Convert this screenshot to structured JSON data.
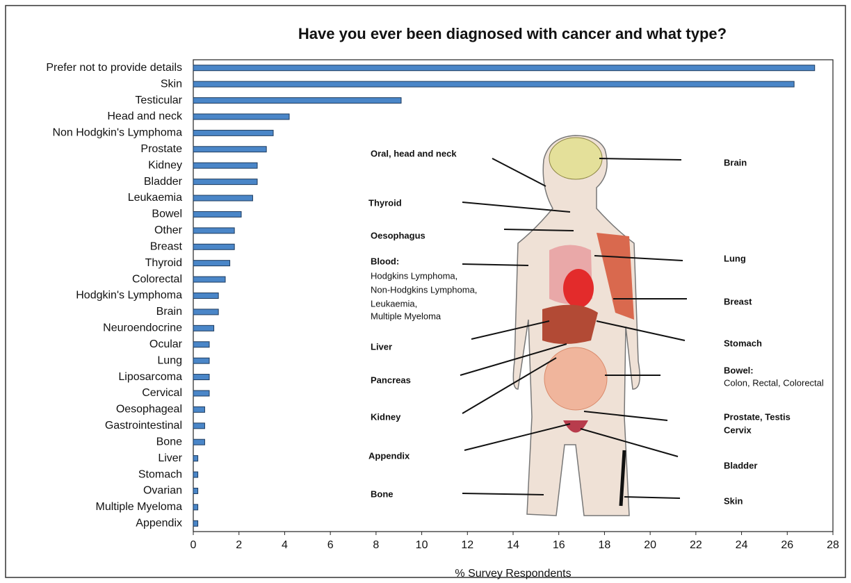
{
  "chart_data": {
    "type": "bar",
    "orientation": "horizontal",
    "title": "Have you ever been diagnosed with cancer and what type?",
    "xlabel": "% Survey Respondents",
    "categories": [
      "Prefer not to provide details",
      "Skin",
      "Testicular",
      "Head and neck",
      "Non Hodgkin's Lymphoma",
      "Prostate",
      "Kidney",
      "Bladder",
      "Leukaemia",
      "Bowel",
      "Other",
      "Breast",
      "Thyroid",
      "Colorectal",
      "Hodgkin's Lymphoma",
      "Brain",
      "Neuroendocrine",
      "Ocular",
      "Lung",
      "Liposarcoma",
      "Cervical",
      "Oesophageal",
      "Gastrointestinal",
      "Bone",
      "Liver",
      "Stomach",
      "Ovarian",
      "Multiple Myeloma",
      "Appendix"
    ],
    "values": [
      27.2,
      26.3,
      9.1,
      4.2,
      3.5,
      3.2,
      2.8,
      2.8,
      2.6,
      2.1,
      1.8,
      1.8,
      1.6,
      1.4,
      1.1,
      1.1,
      0.9,
      0.7,
      0.7,
      0.7,
      0.7,
      0.5,
      0.5,
      0.5,
      0.2,
      0.2,
      0.2,
      0.2,
      0.2
    ],
    "color": "#4a86c8",
    "xlim": [
      0,
      28
    ],
    "xticks": [
      0,
      2,
      4,
      6,
      8,
      10,
      12,
      14,
      16,
      18,
      20,
      22,
      24,
      26,
      28
    ],
    "grid": false,
    "annotations": [
      "Oral, head and neck",
      "Thyroid",
      "Oesophagus",
      "Blood:",
      "Hodgkins Lymphoma,",
      "Non-Hodgkins Lymphoma,",
      "Leukaemia,",
      "Multiple Myeloma",
      "Liver",
      "Pancreas",
      "Kidney",
      "Appendix",
      "Bone",
      "Brain",
      "Lung",
      "Breast",
      "Stomach",
      "Bowel:",
      "Colon, Rectal, Colorectal",
      "Prostate, Testis",
      "Cervix",
      "Bladder",
      "Skin"
    ]
  }
}
